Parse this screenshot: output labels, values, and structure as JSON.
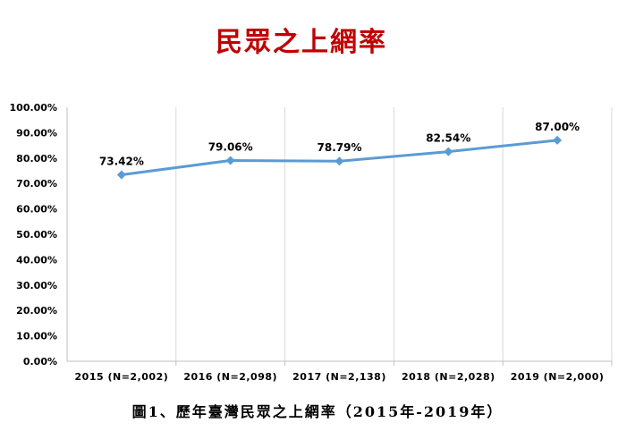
{
  "chart_data": {
    "type": "line",
    "title": "民眾之上網率",
    "categories": [
      "2015 (N=2,002)",
      "2016 (N=2,098)",
      "2017 (N=2,138)",
      "2018 (N=2,028)",
      "2019 (N=2,000)"
    ],
    "series": [
      {
        "values": [
          73.42,
          79.06,
          78.79,
          82.54,
          87.0
        ],
        "labels": [
          "73.42%",
          "79.06%",
          "78.79%",
          "82.54%",
          "87.00%"
        ]
      }
    ],
    "yticks": [
      "0.00%",
      "10.00%",
      "20.00%",
      "30.00%",
      "40.00%",
      "50.00%",
      "60.00%",
      "70.00%",
      "80.00%",
      "90.00%",
      "100.00%"
    ],
    "ylim": [
      0,
      100
    ],
    "grid": "vertical",
    "legend": "none",
    "line_color": "#5b9bd5",
    "title_color": "#c00000"
  },
  "caption": "圖1、歷年臺灣民眾之上網率（2015年-2019年）"
}
